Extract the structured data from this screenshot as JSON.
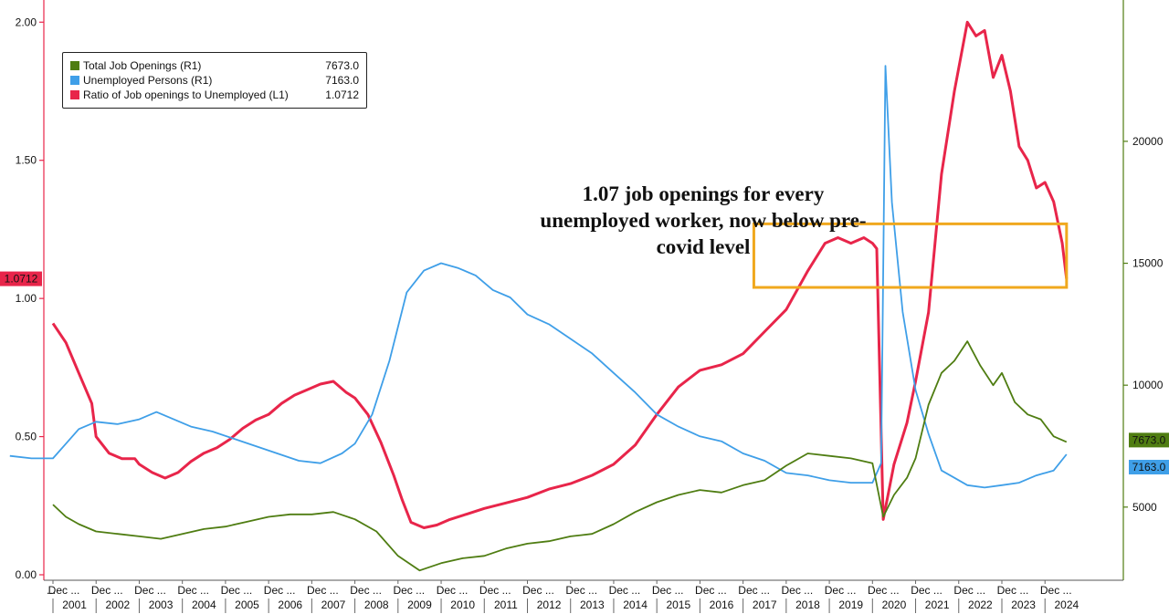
{
  "legend": [
    {
      "label": "Total Job Openings (R1)",
      "value": "7673.0",
      "color": "#4f7d12"
    },
    {
      "label": "Unemployed Persons (R1)",
      "value": "7163.0",
      "color": "#3f9fe8"
    },
    {
      "label": "Ratio of Job openings to Unemployed (L1)",
      "value": "1.0712",
      "color": "#e8254a"
    }
  ],
  "annotation": [
    "1.07 job openings for every",
    "unemployed worker, now below pre-",
    "covid level"
  ],
  "last_value_tags": {
    "ratio": "1.0712",
    "openings": "7673.0",
    "unemployed": "7163.0"
  },
  "chart_data": {
    "type": "line",
    "title": "",
    "x_axis": {
      "range": [
        2001.0,
        2024.8
      ],
      "month_label": "Dec ...",
      "year_labels": [
        "2001",
        "2002",
        "2003",
        "2004",
        "2005",
        "2006",
        "2007",
        "2008",
        "2009",
        "2010",
        "2011",
        "2012",
        "2013",
        "2014",
        "2015",
        "2016",
        "2017",
        "2018",
        "2019",
        "2020",
        "2021",
        "2022",
        "2023",
        "2024"
      ]
    },
    "y_left": {
      "range": [
        0.0,
        2.1
      ],
      "ticks": [
        "0.00",
        "0.50",
        "1.00",
        "1.50",
        "2.00"
      ]
    },
    "y_right": {
      "range": [
        2000,
        25000
      ],
      "ticks": [
        "5000",
        "10000",
        "15000",
        "20000"
      ]
    },
    "highlight_box": {
      "x": [
        2017.25,
        2024.5
      ],
      "y": [
        1.04,
        1.27
      ],
      "color": "#f0a81e"
    },
    "series": [
      {
        "name": "Ratio of Job openings to Unemployed (L1)",
        "axis": "left",
        "color": "#e8254a",
        "points": [
          [
            2001.0,
            0.91
          ],
          [
            2001.3,
            0.84
          ],
          [
            2001.6,
            0.73
          ],
          [
            2001.9,
            0.62
          ],
          [
            2002.0,
            0.5
          ],
          [
            2002.3,
            0.44
          ],
          [
            2002.6,
            0.42
          ],
          [
            2002.9,
            0.42
          ],
          [
            2003.0,
            0.4
          ],
          [
            2003.3,
            0.37
          ],
          [
            2003.6,
            0.35
          ],
          [
            2003.9,
            0.37
          ],
          [
            2004.2,
            0.41
          ],
          [
            2004.5,
            0.44
          ],
          [
            2004.8,
            0.46
          ],
          [
            2005.1,
            0.49
          ],
          [
            2005.4,
            0.53
          ],
          [
            2005.7,
            0.56
          ],
          [
            2006.0,
            0.58
          ],
          [
            2006.3,
            0.62
          ],
          [
            2006.6,
            0.65
          ],
          [
            2006.9,
            0.67
          ],
          [
            2007.2,
            0.69
          ],
          [
            2007.5,
            0.7
          ],
          [
            2007.8,
            0.66
          ],
          [
            2008.0,
            0.64
          ],
          [
            2008.3,
            0.58
          ],
          [
            2008.6,
            0.48
          ],
          [
            2008.9,
            0.36
          ],
          [
            2009.1,
            0.27
          ],
          [
            2009.3,
            0.19
          ],
          [
            2009.6,
            0.17
          ],
          [
            2009.9,
            0.18
          ],
          [
            2010.2,
            0.2
          ],
          [
            2010.6,
            0.22
          ],
          [
            2011.0,
            0.24
          ],
          [
            2011.5,
            0.26
          ],
          [
            2012.0,
            0.28
          ],
          [
            2012.5,
            0.31
          ],
          [
            2013.0,
            0.33
          ],
          [
            2013.5,
            0.36
          ],
          [
            2014.0,
            0.4
          ],
          [
            2014.5,
            0.47
          ],
          [
            2015.0,
            0.58
          ],
          [
            2015.5,
            0.68
          ],
          [
            2016.0,
            0.74
          ],
          [
            2016.5,
            0.76
          ],
          [
            2017.0,
            0.8
          ],
          [
            2017.5,
            0.88
          ],
          [
            2018.0,
            0.96
          ],
          [
            2018.5,
            1.1
          ],
          [
            2018.9,
            1.2
          ],
          [
            2019.2,
            1.22
          ],
          [
            2019.5,
            1.2
          ],
          [
            2019.8,
            1.22
          ],
          [
            2020.0,
            1.2
          ],
          [
            2020.1,
            1.18
          ],
          [
            2020.25,
            0.2
          ],
          [
            2020.5,
            0.4
          ],
          [
            2020.8,
            0.55
          ],
          [
            2021.0,
            0.7
          ],
          [
            2021.3,
            0.95
          ],
          [
            2021.6,
            1.45
          ],
          [
            2021.9,
            1.75
          ],
          [
            2022.2,
            2.0
          ],
          [
            2022.4,
            1.95
          ],
          [
            2022.6,
            1.97
          ],
          [
            2022.8,
            1.8
          ],
          [
            2023.0,
            1.88
          ],
          [
            2023.2,
            1.75
          ],
          [
            2023.4,
            1.55
          ],
          [
            2023.6,
            1.5
          ],
          [
            2023.8,
            1.4
          ],
          [
            2024.0,
            1.42
          ],
          [
            2024.2,
            1.35
          ],
          [
            2024.4,
            1.2
          ],
          [
            2024.5,
            1.0712
          ]
        ]
      },
      {
        "name": "Unemployed Persons (R1)",
        "axis": "right",
        "color": "#3f9fe8",
        "points": [
          [
            2000.0,
            7100
          ],
          [
            2000.5,
            7000
          ],
          [
            2001.0,
            7000
          ],
          [
            2001.3,
            7600
          ],
          [
            2001.6,
            8200
          ],
          [
            2002.0,
            8500
          ],
          [
            2002.5,
            8400
          ],
          [
            2003.0,
            8600
          ],
          [
            2003.4,
            8900
          ],
          [
            2003.8,
            8600
          ],
          [
            2004.2,
            8300
          ],
          [
            2004.7,
            8100
          ],
          [
            2005.2,
            7800
          ],
          [
            2005.7,
            7500
          ],
          [
            2006.2,
            7200
          ],
          [
            2006.7,
            6900
          ],
          [
            2007.2,
            6800
          ],
          [
            2007.7,
            7200
          ],
          [
            2008.0,
            7600
          ],
          [
            2008.4,
            8800
          ],
          [
            2008.8,
            11000
          ],
          [
            2009.2,
            13800
          ],
          [
            2009.6,
            14700
          ],
          [
            2010.0,
            15000
          ],
          [
            2010.4,
            14800
          ],
          [
            2010.8,
            14500
          ],
          [
            2011.2,
            13900
          ],
          [
            2011.6,
            13600
          ],
          [
            2012.0,
            12900
          ],
          [
            2012.5,
            12500
          ],
          [
            2013.0,
            11900
          ],
          [
            2013.5,
            11300
          ],
          [
            2014.0,
            10500
          ],
          [
            2014.5,
            9700
          ],
          [
            2015.0,
            8800
          ],
          [
            2015.5,
            8300
          ],
          [
            2016.0,
            7900
          ],
          [
            2016.5,
            7700
          ],
          [
            2017.0,
            7200
          ],
          [
            2017.5,
            6900
          ],
          [
            2018.0,
            6400
          ],
          [
            2018.5,
            6300
          ],
          [
            2019.0,
            6100
          ],
          [
            2019.5,
            6000
          ],
          [
            2020.0,
            6000
          ],
          [
            2020.2,
            6800
          ],
          [
            2020.3,
            23100
          ],
          [
            2020.45,
            17500
          ],
          [
            2020.7,
            13000
          ],
          [
            2021.0,
            9800
          ],
          [
            2021.3,
            8000
          ],
          [
            2021.6,
            6500
          ],
          [
            2021.9,
            6200
          ],
          [
            2022.2,
            5900
          ],
          [
            2022.6,
            5800
          ],
          [
            2023.0,
            5900
          ],
          [
            2023.4,
            6000
          ],
          [
            2023.8,
            6300
          ],
          [
            2024.2,
            6500
          ],
          [
            2024.5,
            7163
          ]
        ]
      },
      {
        "name": "Total Job Openings (R1)",
        "axis": "right",
        "color": "#4f7d12",
        "points": [
          [
            2001.0,
            5100
          ],
          [
            2001.3,
            4600
          ],
          [
            2001.6,
            4300
          ],
          [
            2002.0,
            4000
          ],
          [
            2002.5,
            3900
          ],
          [
            2003.0,
            3800
          ],
          [
            2003.5,
            3700
          ],
          [
            2004.0,
            3900
          ],
          [
            2004.5,
            4100
          ],
          [
            2005.0,
            4200
          ],
          [
            2005.5,
            4400
          ],
          [
            2006.0,
            4600
          ],
          [
            2006.5,
            4700
          ],
          [
            2007.0,
            4700
          ],
          [
            2007.5,
            4800
          ],
          [
            2008.0,
            4500
          ],
          [
            2008.5,
            4000
          ],
          [
            2009.0,
            3000
          ],
          [
            2009.5,
            2400
          ],
          [
            2010.0,
            2700
          ],
          [
            2010.5,
            2900
          ],
          [
            2011.0,
            3000
          ],
          [
            2011.5,
            3300
          ],
          [
            2012.0,
            3500
          ],
          [
            2012.5,
            3600
          ],
          [
            2013.0,
            3800
          ],
          [
            2013.5,
            3900
          ],
          [
            2014.0,
            4300
          ],
          [
            2014.5,
            4800
          ],
          [
            2015.0,
            5200
          ],
          [
            2015.5,
            5500
          ],
          [
            2016.0,
            5700
          ],
          [
            2016.5,
            5600
          ],
          [
            2017.0,
            5900
          ],
          [
            2017.5,
            6100
          ],
          [
            2018.0,
            6700
          ],
          [
            2018.5,
            7200
          ],
          [
            2019.0,
            7100
          ],
          [
            2019.5,
            7000
          ],
          [
            2020.0,
            6800
          ],
          [
            2020.25,
            4600
          ],
          [
            2020.5,
            5500
          ],
          [
            2020.8,
            6200
          ],
          [
            2021.0,
            7000
          ],
          [
            2021.3,
            9200
          ],
          [
            2021.6,
            10500
          ],
          [
            2021.9,
            11000
          ],
          [
            2022.2,
            11800
          ],
          [
            2022.5,
            10800
          ],
          [
            2022.8,
            10000
          ],
          [
            2023.0,
            10500
          ],
          [
            2023.3,
            9300
          ],
          [
            2023.6,
            8800
          ],
          [
            2023.9,
            8600
          ],
          [
            2024.2,
            7900
          ],
          [
            2024.5,
            7673
          ]
        ]
      }
    ]
  }
}
